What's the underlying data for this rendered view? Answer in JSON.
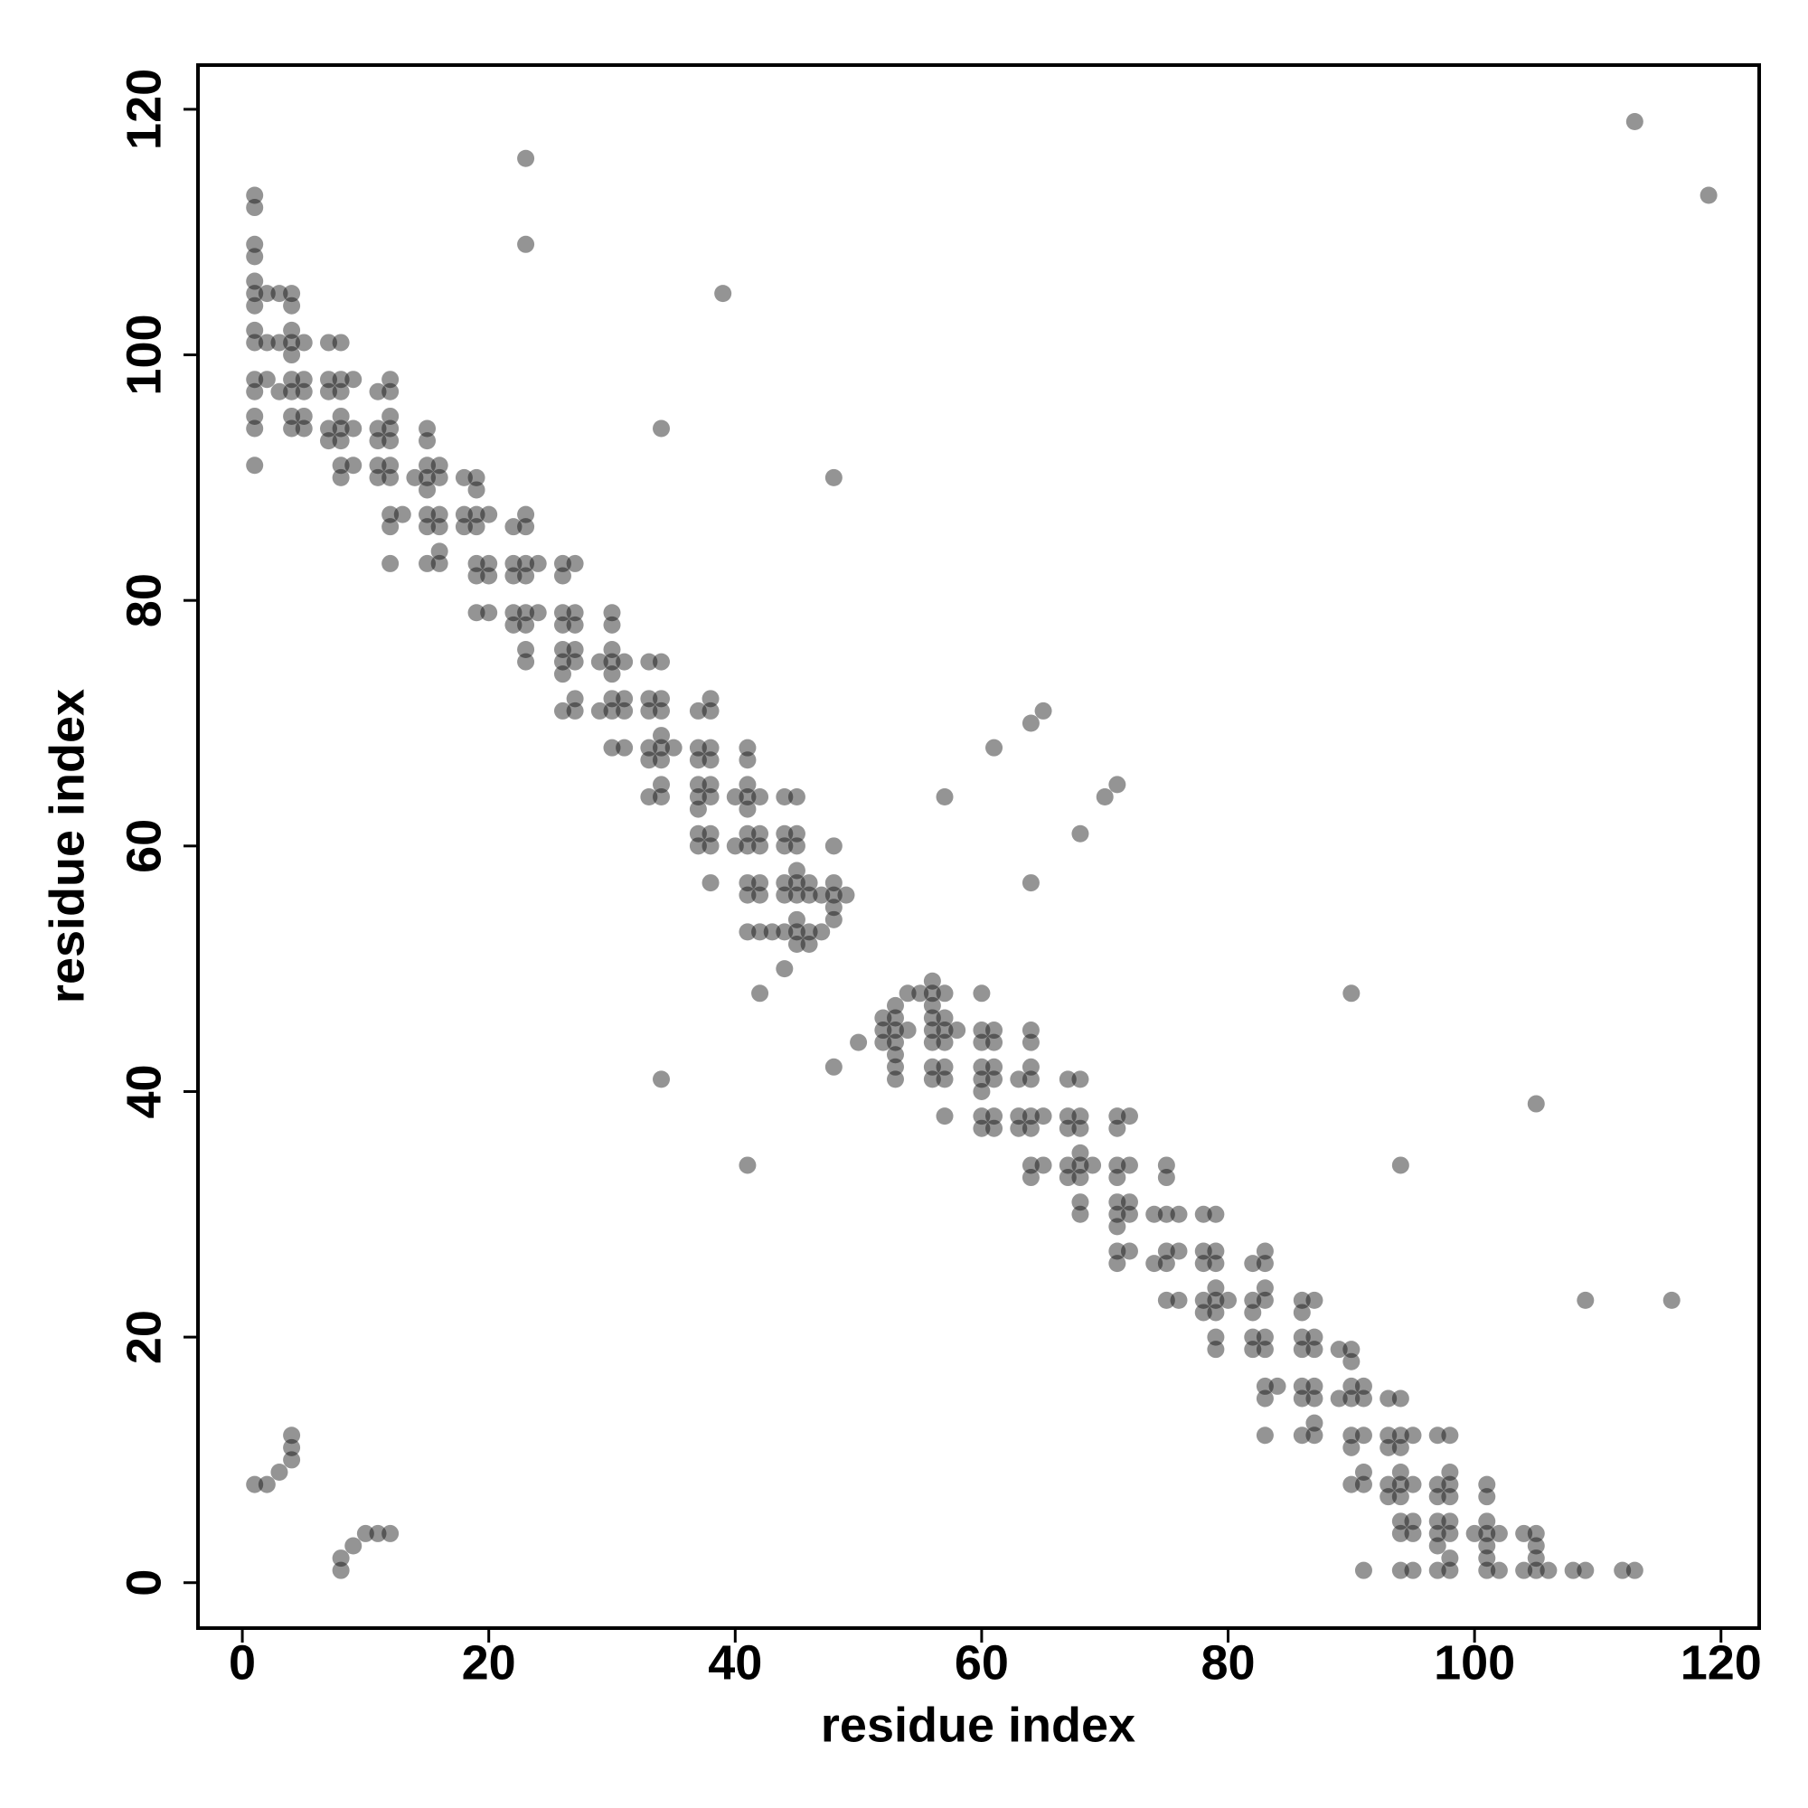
{
  "chart_data": {
    "type": "scatter",
    "xlabel": "residue index",
    "ylabel": "residue index",
    "xlim": [
      -3.6,
      123.1
    ],
    "ylim": [
      -3.7,
      123.6
    ],
    "xticks": [
      0,
      20,
      40,
      60,
      80,
      100,
      120
    ],
    "yticks": [
      0,
      20,
      40,
      60,
      80,
      100,
      120
    ],
    "color": "#000000",
    "alpha": 0.42,
    "x": [
      1,
      2,
      3,
      4,
      4,
      4,
      8,
      8,
      9,
      10,
      11,
      12,
      1,
      1,
      1,
      1,
      1,
      1,
      1,
      1,
      1,
      1,
      1,
      1,
      1,
      1,
      2,
      2,
      2,
      3,
      3,
      3,
      4,
      4,
      4,
      4,
      4,
      4,
      4,
      4,
      4,
      5,
      5,
      5,
      5,
      5,
      7,
      7,
      7,
      7,
      7,
      8,
      8,
      8,
      8,
      8,
      8,
      8,
      8,
      9,
      9,
      9,
      11,
      11,
      11,
      11,
      11,
      12,
      12,
      12,
      12,
      12,
      12,
      12,
      12,
      12,
      12,
      13,
      14,
      15,
      15,
      15,
      15,
      15,
      15,
      15,
      15,
      16,
      16,
      16,
      16,
      16,
      16,
      18,
      18,
      18,
      19,
      19,
      19,
      19,
      19,
      19,
      19,
      20,
      20,
      20,
      20,
      22,
      22,
      22,
      22,
      22,
      23,
      23,
      23,
      23,
      23,
      23,
      23,
      23,
      23,
      23,
      24,
      24,
      26,
      26,
      26,
      26,
      26,
      26,
      26,
      26,
      27,
      27,
      27,
      27,
      27,
      27,
      27,
      29,
      29,
      30,
      30,
      30,
      30,
      30,
      30,
      30,
      30,
      31,
      31,
      31,
      31,
      33,
      33,
      33,
      33,
      33,
      33,
      34,
      34,
      34,
      34,
      34,
      34,
      34,
      34,
      34,
      34,
      35,
      37,
      37,
      37,
      37,
      37,
      37,
      37,
      37,
      38,
      38,
      38,
      38,
      38,
      38,
      38,
      38,
      38,
      39,
      40,
      40,
      41,
      41,
      41,
      41,
      41,
      41,
      41,
      41,
      41,
      41,
      41,
      42,
      42,
      42,
      42,
      42,
      42,
      42,
      43,
      44,
      44,
      44,
      44,
      44,
      44,
      44,
      45,
      45,
      45,
      45,
      45,
      45,
      45,
      45,
      45,
      46,
      46,
      46,
      46,
      47,
      47,
      48,
      48,
      48,
      48,
      48,
      48,
      48,
      49,
      50,
      52,
      52,
      52,
      53,
      53,
      53,
      53,
      53,
      53,
      53,
      54,
      54,
      55,
      56,
      56,
      56,
      56,
      56,
      56,
      56,
      56,
      57,
      57,
      57,
      57,
      57,
      57,
      57,
      57,
      58,
      60,
      60,
      60,
      60,
      60,
      60,
      60,
      60,
      61,
      61,
      61,
      61,
      61,
      61,
      61,
      63,
      63,
      63,
      64,
      64,
      64,
      64,
      64,
      64,
      64,
      64,
      64,
      64,
      65,
      65,
      65,
      67,
      67,
      67,
      67,
      67,
      68,
      68,
      68,
      68,
      68,
      68,
      68,
      68,
      68,
      69,
      70,
      71,
      71,
      71,
      71,
      71,
      71,
      71,
      71,
      71,
      71,
      72,
      72,
      72,
      72,
      72,
      74,
      74,
      75,
      75,
      75,
      75,
      75,
      75,
      76,
      76,
      76,
      78,
      78,
      78,
      78,
      78,
      79,
      79,
      79,
      79,
      79,
      79,
      79,
      79,
      80,
      82,
      82,
      82,
      82,
      82,
      83,
      83,
      83,
      83,
      83,
      83,
      83,
      83,
      83,
      84,
      86,
      86,
      86,
      86,
      86,
      86,
      86,
      87,
      87,
      87,
      87,
      87,
      87,
      87,
      89,
      89,
      90,
      90,
      90,
      90,
      90,
      90,
      90,
      90,
      91,
      91,
      91,
      91,
      91,
      91,
      93,
      93,
      93,
      93,
      93,
      94,
      94,
      94,
      94,
      94,
      94,
      94,
      94,
      94,
      94,
      95,
      95,
      95,
      95,
      95,
      97,
      97,
      97,
      97,
      97,
      97,
      97,
      98,
      98,
      98,
      98,
      98,
      98,
      98,
      98,
      100,
      101,
      101,
      101,
      101,
      101,
      101,
      101,
      102,
      102,
      104,
      104,
      105,
      105,
      105,
      105,
      105,
      106,
      108,
      109,
      109,
      112,
      113,
      113,
      116,
      119
    ],
    "values": [
      8,
      8,
      9,
      10,
      11,
      12,
      1,
      2,
      3,
      4,
      4,
      4,
      113,
      112,
      109,
      108,
      106,
      105,
      104,
      102,
      101,
      98,
      97,
      95,
      94,
      91,
      105,
      101,
      98,
      105,
      101,
      97,
      105,
      104,
      102,
      101,
      100,
      98,
      97,
      95,
      94,
      101,
      98,
      97,
      95,
      94,
      101,
      98,
      97,
      94,
      93,
      101,
      98,
      97,
      95,
      94,
      93,
      91,
      90,
      98,
      94,
      91,
      97,
      94,
      93,
      91,
      90,
      98,
      97,
      95,
      94,
      93,
      91,
      90,
      87,
      86,
      83,
      87,
      90,
      94,
      93,
      91,
      90,
      89,
      87,
      86,
      83,
      91,
      90,
      87,
      86,
      84,
      83,
      90,
      87,
      86,
      90,
      89,
      87,
      86,
      83,
      82,
      79,
      87,
      83,
      82,
      79,
      86,
      83,
      82,
      79,
      78,
      116,
      109,
      87,
      86,
      83,
      82,
      79,
      78,
      76,
      75,
      83,
      79,
      83,
      82,
      79,
      78,
      76,
      75,
      74,
      71,
      83,
      79,
      78,
      76,
      75,
      72,
      71,
      75,
      71,
      79,
      78,
      76,
      75,
      74,
      72,
      71,
      68,
      75,
      72,
      71,
      68,
      75,
      72,
      71,
      68,
      67,
      64,
      94,
      75,
      72,
      71,
      69,
      68,
      67,
      65,
      64,
      41,
      68,
      71,
      68,
      67,
      65,
      64,
      63,
      61,
      60,
      72,
      71,
      68,
      67,
      65,
      64,
      61,
      60,
      57,
      105,
      64,
      60,
      68,
      67,
      65,
      64,
      63,
      61,
      60,
      57,
      56,
      53,
      34,
      64,
      61,
      60,
      57,
      56,
      53,
      48,
      53,
      64,
      61,
      60,
      57,
      56,
      53,
      50,
      64,
      61,
      60,
      58,
      57,
      56,
      54,
      53,
      52,
      57,
      56,
      53,
      52,
      56,
      53,
      90,
      60,
      57,
      56,
      55,
      54,
      42,
      56,
      44,
      46,
      45,
      44,
      47,
      46,
      45,
      44,
      43,
      42,
      41,
      48,
      45,
      48,
      49,
      48,
      47,
      46,
      45,
      44,
      42,
      41,
      64,
      48,
      46,
      45,
      44,
      42,
      41,
      38,
      45,
      48,
      45,
      44,
      42,
      41,
      40,
      38,
      37,
      68,
      45,
      44,
      42,
      41,
      38,
      37,
      41,
      38,
      37,
      70,
      57,
      45,
      44,
      42,
      41,
      38,
      37,
      34,
      33,
      71,
      38,
      34,
      41,
      38,
      37,
      34,
      33,
      61,
      41,
      38,
      37,
      35,
      34,
      33,
      31,
      30,
      34,
      64,
      65,
      38,
      37,
      34,
      33,
      31,
      30,
      29,
      27,
      26,
      38,
      34,
      31,
      30,
      27,
      30,
      26,
      34,
      33,
      30,
      27,
      26,
      23,
      30,
      27,
      23,
      30,
      27,
      26,
      23,
      22,
      30,
      27,
      26,
      24,
      23,
      22,
      20,
      19,
      23,
      26,
      23,
      22,
      20,
      19,
      27,
      26,
      24,
      23,
      20,
      19,
      16,
      15,
      12,
      16,
      23,
      22,
      20,
      19,
      16,
      15,
      12,
      23,
      20,
      19,
      16,
      15,
      13,
      12,
      19,
      15,
      48,
      19,
      18,
      16,
      15,
      12,
      11,
      8,
      16,
      15,
      12,
      9,
      8,
      1,
      15,
      12,
      11,
      8,
      7,
      34,
      15,
      12,
      11,
      9,
      8,
      7,
      5,
      4,
      1,
      12,
      8,
      5,
      4,
      1,
      12,
      8,
      7,
      5,
      4,
      3,
      1,
      12,
      9,
      8,
      7,
      5,
      4,
      2,
      1,
      4,
      8,
      7,
      5,
      4,
      3,
      2,
      1,
      4,
      1,
      4,
      1,
      39,
      4,
      3,
      2,
      1,
      1,
      1,
      23,
      1,
      1,
      119,
      1,
      23,
      113
    ]
  }
}
